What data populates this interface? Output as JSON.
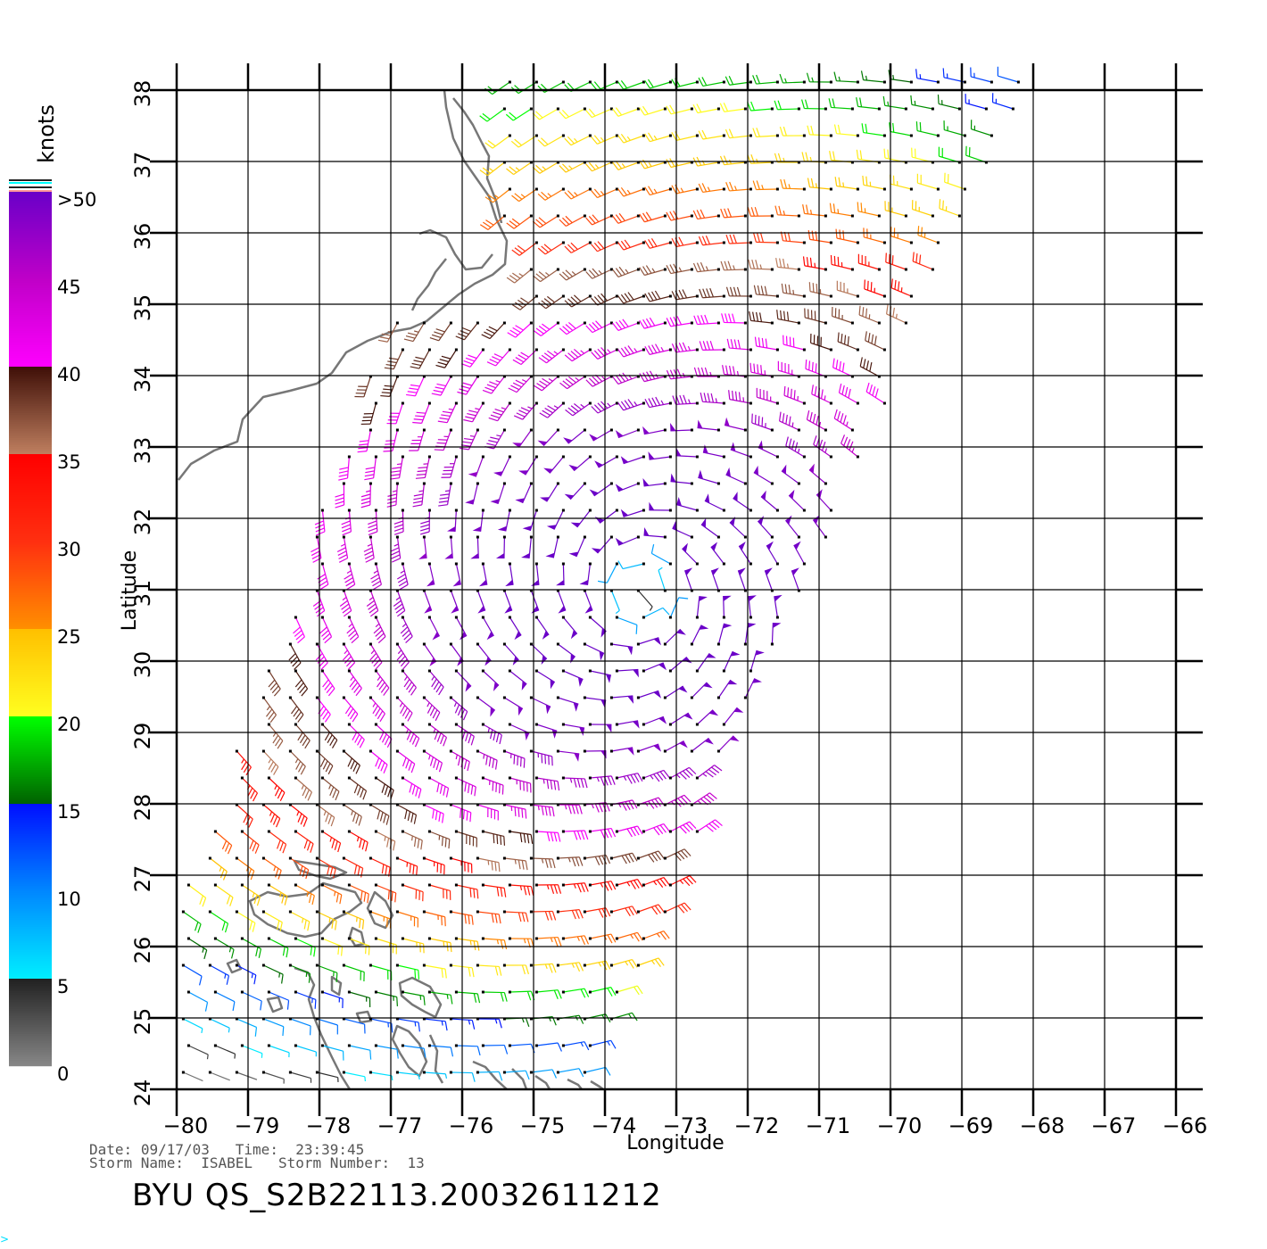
{
  "chart_data": {
    "type": "wind-barb-map",
    "xlabel": "Longitude",
    "ylabel": "Latitude",
    "xlim": [
      -80,
      -66
    ],
    "ylim": [
      24,
      38
    ],
    "x_ticks": [
      "−80",
      "−79",
      "−78",
      "−77",
      "−76",
      "−75",
      "−74",
      "−73",
      "−72",
      "−71",
      "−70",
      "−69",
      "−68",
      "−67",
      "−66"
    ],
    "x_tick_values": [
      -80,
      -79,
      -78,
      -77,
      -76,
      -75,
      -74,
      -73,
      -72,
      -71,
      -70,
      -69,
      -68,
      -67,
      -66
    ],
    "y_ticks": [
      "24",
      "25",
      "26",
      "27",
      "28",
      "29",
      "30",
      "31",
      "32",
      "33",
      "34",
      "35",
      "36",
      "37",
      "38"
    ],
    "y_tick_values": [
      24,
      25,
      26,
      27,
      28,
      29,
      30,
      31,
      32,
      33,
      34,
      35,
      36,
      37,
      38
    ],
    "grid": true,
    "storm_center": {
      "lon": -73.5,
      "lat": 31.0
    },
    "colorbar": {
      "unit": "knots",
      "tick_labels": [
        "0",
        "5",
        "10",
        "15",
        "20",
        "25",
        "30",
        "35",
        "40",
        "45",
        ">50"
      ],
      "tick_values": [
        0,
        5,
        10,
        15,
        20,
        25,
        30,
        35,
        40,
        45,
        50
      ],
      "stops": [
        {
          "v": 0,
          "color": "#888888"
        },
        {
          "v": 5,
          "color": "#222222"
        },
        {
          "v": 5.01,
          "color": "#00f0ff"
        },
        {
          "v": 10,
          "color": "#0088ff"
        },
        {
          "v": 15,
          "color": "#0010ff"
        },
        {
          "v": 15.01,
          "color": "#006000"
        },
        {
          "v": 20,
          "color": "#00ff00"
        },
        {
          "v": 20.01,
          "color": "#ffff20"
        },
        {
          "v": 25,
          "color": "#ffc000"
        },
        {
          "v": 25.01,
          "color": "#ff9000"
        },
        {
          "v": 30,
          "color": "#ff3010"
        },
        {
          "v": 35,
          "color": "#ff0000"
        },
        {
          "v": 35.01,
          "color": "#c08060"
        },
        {
          "v": 40,
          "color": "#401008"
        },
        {
          "v": 40.01,
          "color": "#ff00ff"
        },
        {
          "v": 45,
          "color": "#c000c8"
        },
        {
          "v": 50,
          "color": "#6a00c8"
        }
      ]
    }
  },
  "info": {
    "date_label": "Date:",
    "date": "09/17/03",
    "time_label": "Time:",
    "time": "23:39:45",
    "storm_name_label": "Storm Name:",
    "storm_name": "ISABEL",
    "storm_number_label": "Storm Number:",
    "storm_number": "13",
    "file_title": "BYU QS_S2B22113.20032611212"
  }
}
